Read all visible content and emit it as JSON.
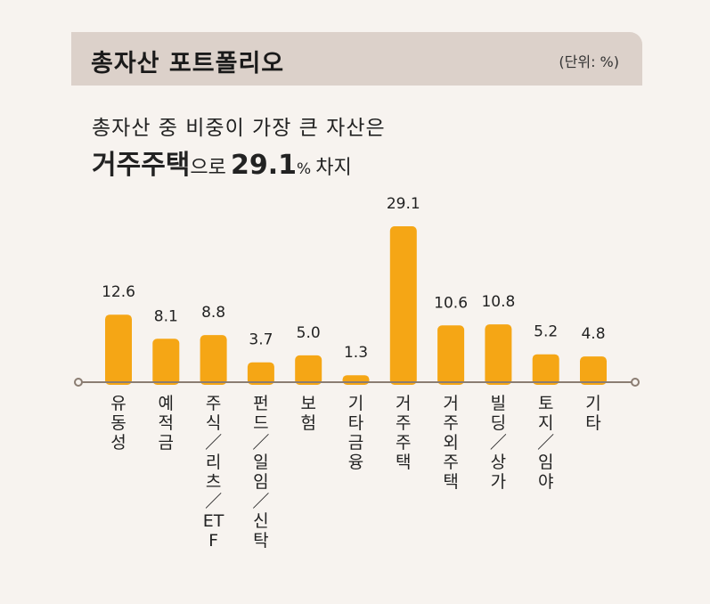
{
  "header": {
    "title": "총자산 포트폴리오",
    "unit": "(단위: %)"
  },
  "headline": {
    "line1": "총자산 중 비중이 가장 큰 자산은",
    "highlight_category": "거주주택",
    "particle": "으로",
    "highlight_value": "29.1",
    "percent_sign": "%",
    "tail": "차지"
  },
  "colors": {
    "bar": "#f5a615",
    "axis": "#8b7d72",
    "header_bg": "#dcd1ca",
    "background": "#f7f3ef"
  },
  "chart_data": {
    "type": "bar",
    "title": "총자산 포트폴리오",
    "unit": "%",
    "categories": [
      "유동성",
      "예적금",
      "주식/리츠/ETF",
      "펀드/일임/신탁",
      "보험",
      "기타금융",
      "거주주택",
      "거주외주택",
      "빌딩/상가",
      "토지/임야",
      "기타"
    ],
    "values": [
      12.6,
      8.1,
      8.8,
      3.7,
      5.0,
      1.3,
      29.1,
      10.6,
      10.8,
      5.2,
      4.8
    ],
    "value_labels": [
      "12.6",
      "8.1",
      "8.8",
      "3.7",
      "5.0",
      "1.3",
      "29.1",
      "10.6",
      "10.8",
      "5.2",
      "4.8"
    ],
    "category_labels_vertical": [
      "유동성",
      "예적금",
      "주식／리츠／ETF",
      "펀드／일임／신탁",
      "보험",
      "기타금융",
      "거주주택",
      "거주외주택",
      "빌딩／상가",
      "토지／임야",
      "기타"
    ],
    "ylim": [
      0,
      29.1
    ],
    "grid": false,
    "legend": "none"
  }
}
